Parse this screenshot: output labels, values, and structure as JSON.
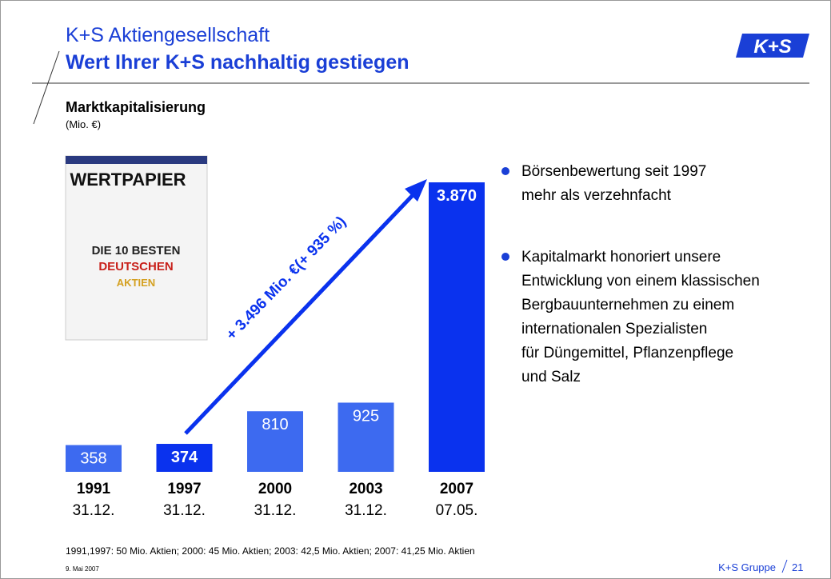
{
  "header": {
    "title": "K+S Aktiengesellschaft",
    "subtitle": "Wert Ihrer K+S nachhaltig gestiegen",
    "logo": "K+S"
  },
  "chart_data": {
    "type": "bar",
    "title": "Marktkapitalisierung",
    "unit": "(Mio. €)",
    "categories": [
      "1991",
      "1997",
      "2000",
      "2003",
      "2007"
    ],
    "dates": [
      "31.12.",
      "31.12.",
      "31.12.",
      "31.12.",
      "07.05."
    ],
    "values": [
      358,
      374,
      810,
      925,
      3870
    ],
    "value_labels": [
      "358",
      "374",
      "810",
      "925",
      "3.870"
    ],
    "highlight": [
      false,
      true,
      false,
      false,
      true
    ],
    "color": "#3d6af0",
    "highlight_color": "#0a32ee",
    "annotation": "+ 3.496 Mio. €(+ 935 %)"
  },
  "magazine": {
    "name": "WERTPAPIER",
    "lines": [
      "DIE 10 BESTEN",
      "DEUTSCHEN",
      "AKTIEN"
    ]
  },
  "bullets": [
    [
      "Börsenbewertung seit 1997",
      "mehr als verzehnfacht"
    ],
    [
      "Kapitalmarkt honoriert unsere",
      "Entwicklung von einem klassischen",
      "Bergbauunternehmen zu einem",
      "internationalen Spezialisten",
      "für Düngemittel, Pflanzenpflege",
      "und Salz"
    ]
  ],
  "footer": {
    "note": "1991,1997: 50 Mio. Aktien; 2000: 45 Mio. Aktien; 2003: 42,5 Mio. Aktien; 2007: 41,25 Mio. Aktien",
    "date": "9. Mai 2007",
    "company": "K+S Gruppe",
    "page": "21"
  }
}
